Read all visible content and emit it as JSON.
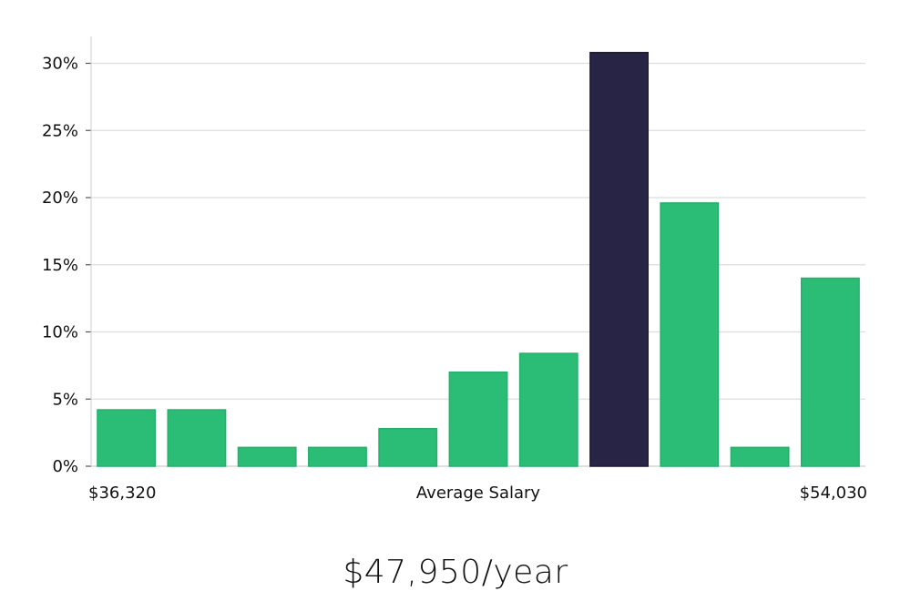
{
  "chart_data": {
    "type": "bar",
    "title": "",
    "xlabel": "Average Salary",
    "ylabel": "",
    "x_min_label": "$36,320",
    "x_max_label": "$54,030",
    "ylim": [
      0,
      32
    ],
    "yticks": [
      0,
      5,
      10,
      15,
      20,
      25,
      30
    ],
    "ytick_labels": [
      "0%",
      "5%",
      "10%",
      "15%",
      "20%",
      "25%",
      "30%"
    ],
    "values": [
      4.2,
      4.2,
      1.4,
      1.4,
      2.8,
      7.0,
      8.4,
      30.8,
      19.6,
      1.4,
      14.0
    ],
    "highlight_index": 7,
    "colors": {
      "bar": "#2bbd76",
      "highlight": "#272445",
      "grid": "#dddddd",
      "axis": "#cccccc"
    }
  },
  "salary_display": "$47,950/year"
}
